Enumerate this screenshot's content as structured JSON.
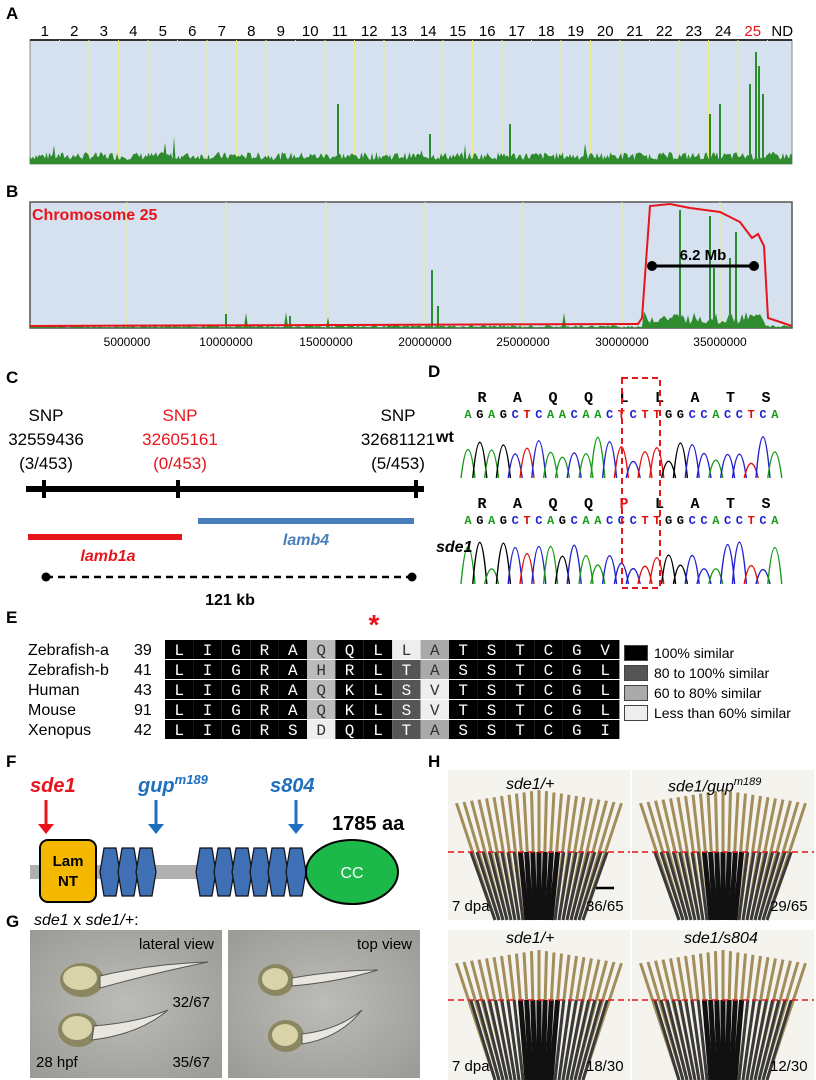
{
  "panels": {
    "a": "A",
    "b": "B",
    "c": "C",
    "d": "D",
    "e": "E",
    "f": "F",
    "g": "G",
    "h": "H"
  },
  "panel_a": {
    "chromosomes": [
      "1",
      "2",
      "3",
      "4",
      "5",
      "6",
      "7",
      "8",
      "9",
      "10",
      "11",
      "12",
      "13",
      "14",
      "15",
      "16",
      "17",
      "18",
      "19",
      "20",
      "21",
      "22",
      "23",
      "24",
      "25",
      "ND"
    ],
    "highlight_chromosome": "25",
    "highlight_color": "#e8141b",
    "signal_color": "#2e8b2e",
    "background_color": "#d5e1ef"
  },
  "panel_b": {
    "title": "Chromosome 25",
    "interval_label": "6.2 Mb",
    "x_ticks": [
      "5000000",
      "10000000",
      "15000000",
      "20000000",
      "25000000",
      "30000000",
      "35000000"
    ]
  },
  "panel_c": {
    "snps": [
      {
        "label": "SNP",
        "position": "32559436",
        "ratio": "(3/453)",
        "color": "#000000"
      },
      {
        "label": "SNP",
        "position": "32605161",
        "ratio": "(0/453)",
        "color": "#e8141b"
      },
      {
        "label": "SNP",
        "position": "32681121",
        "ratio": "(5/453)",
        "color": "#000000"
      }
    ],
    "gene1": "lamb1a",
    "gene1_color": "#e8141b",
    "gene2": "lamb4",
    "gene2_color": "#4a7ebb",
    "distance": "121 kb"
  },
  "panel_d": {
    "wt_label": "wt",
    "mut_label": "sde1",
    "wt_aa": [
      "R",
      "A",
      "Q",
      "Q",
      "L",
      "L",
      "A",
      "T",
      "S"
    ],
    "mut_aa": [
      "R",
      "A",
      "Q",
      "Q",
      "P",
      "L",
      "A",
      "T",
      "S"
    ],
    "wt_nt": "AGAGCTCAACAACTCTTGGCCACCTCA",
    "mut_nt": "AGAGCTCAGCAACCCTTGGCCACCTCA"
  },
  "panel_e": {
    "asterisk": "*",
    "rows": [
      {
        "species": "Zebrafish-a",
        "start": "39",
        "seq": "LIGRAQQLLATSTCGV"
      },
      {
        "species": "Zebrafish-b",
        "start": "41",
        "seq": "LIGRAHRLTASSTCGL"
      },
      {
        "species": "Human",
        "start": "43",
        "seq": "LIGRAQKLSVTSTCGL"
      },
      {
        "species": "Mouse",
        "start": "91",
        "seq": "LIGRAQKLSVTSTCGL"
      },
      {
        "species": "Xenopus",
        "start": "42",
        "seq": "LIGRSDQLTASSTCGI"
      }
    ],
    "legend": [
      {
        "label": "100% similar",
        "color": "#000000"
      },
      {
        "label": "80 to 100% similar",
        "color": "#555555"
      },
      {
        "label": "60 to 80% similar",
        "color": "#aaaaaa"
      },
      {
        "label": "Less than 60% similar",
        "color": "#eeeeee"
      }
    ]
  },
  "panel_f": {
    "alleles": [
      {
        "name": "sde1",
        "sup": "",
        "color": "#e8141b"
      },
      {
        "name": "gup",
        "sup": "m189",
        "color": "#1f6fbf"
      },
      {
        "name": "s804",
        "sup": "",
        "color": "#1f6fbf"
      }
    ],
    "length": "1785 aa",
    "domain_lamnt_1": "Lam",
    "domain_lamnt_2": "NT",
    "domain_cc": "CC",
    "lamnt_color": "#f5b800",
    "egf_color": "#3f6fb5",
    "cc_color": "#1cb84a"
  },
  "panel_g": {
    "cross_a": "sde1",
    "cross_x": " x ",
    "cross_b": "sde1/+",
    "cross_colon": ":",
    "lateral_label": "lateral view",
    "top_label": "top view",
    "count_top": "32/67",
    "count_bottom": "35/67",
    "stage": "28 hpf"
  },
  "panel_h": {
    "top_left_title": "sde1/+",
    "top_right_title_a": "sde1/gup",
    "top_right_title_sup": "m189",
    "bottom_left_title": "sde1/+",
    "bottom_right_title": "sde1/s804",
    "stage_top": "7 dpa",
    "stage_bottom": "7 dpa",
    "count_tl": "36/65",
    "count_tr": "29/65",
    "count_bl": "18/30",
    "count_br": "12/30"
  }
}
